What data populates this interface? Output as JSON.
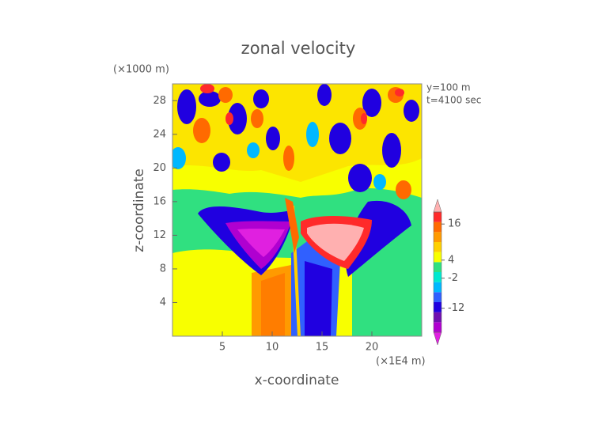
{
  "chart_data": {
    "type": "contour",
    "title": "zonal velocity",
    "x_label": "x-coordinate",
    "y_label": "z-coordinate",
    "x_unit": "(×1E4 m)",
    "y_unit": "(×1000 m)",
    "annotations": [
      "y=100 m",
      "t=4100 sec"
    ],
    "xlim": [
      0,
      25
    ],
    "xticks": [
      5,
      10,
      15,
      20
    ],
    "ylim": [
      0,
      30
    ],
    "yticks": [
      4,
      8,
      12,
      16,
      20,
      24,
      28
    ],
    "colorbar": {
      "clim": [
        -20,
        20
      ],
      "ticks": [
        16,
        4,
        -2,
        -12
      ],
      "colors": [
        "#e020e0",
        "#b000d0",
        "#7010b0",
        "#2000e0",
        "#3060ff",
        "#00b8ff",
        "#00e8d0",
        "#30e080",
        "#f8ff00",
        "#ffd000",
        "#ff9a00",
        "#ff6a00",
        "#ff2a2a",
        "#ffb0b0"
      ]
    }
  }
}
